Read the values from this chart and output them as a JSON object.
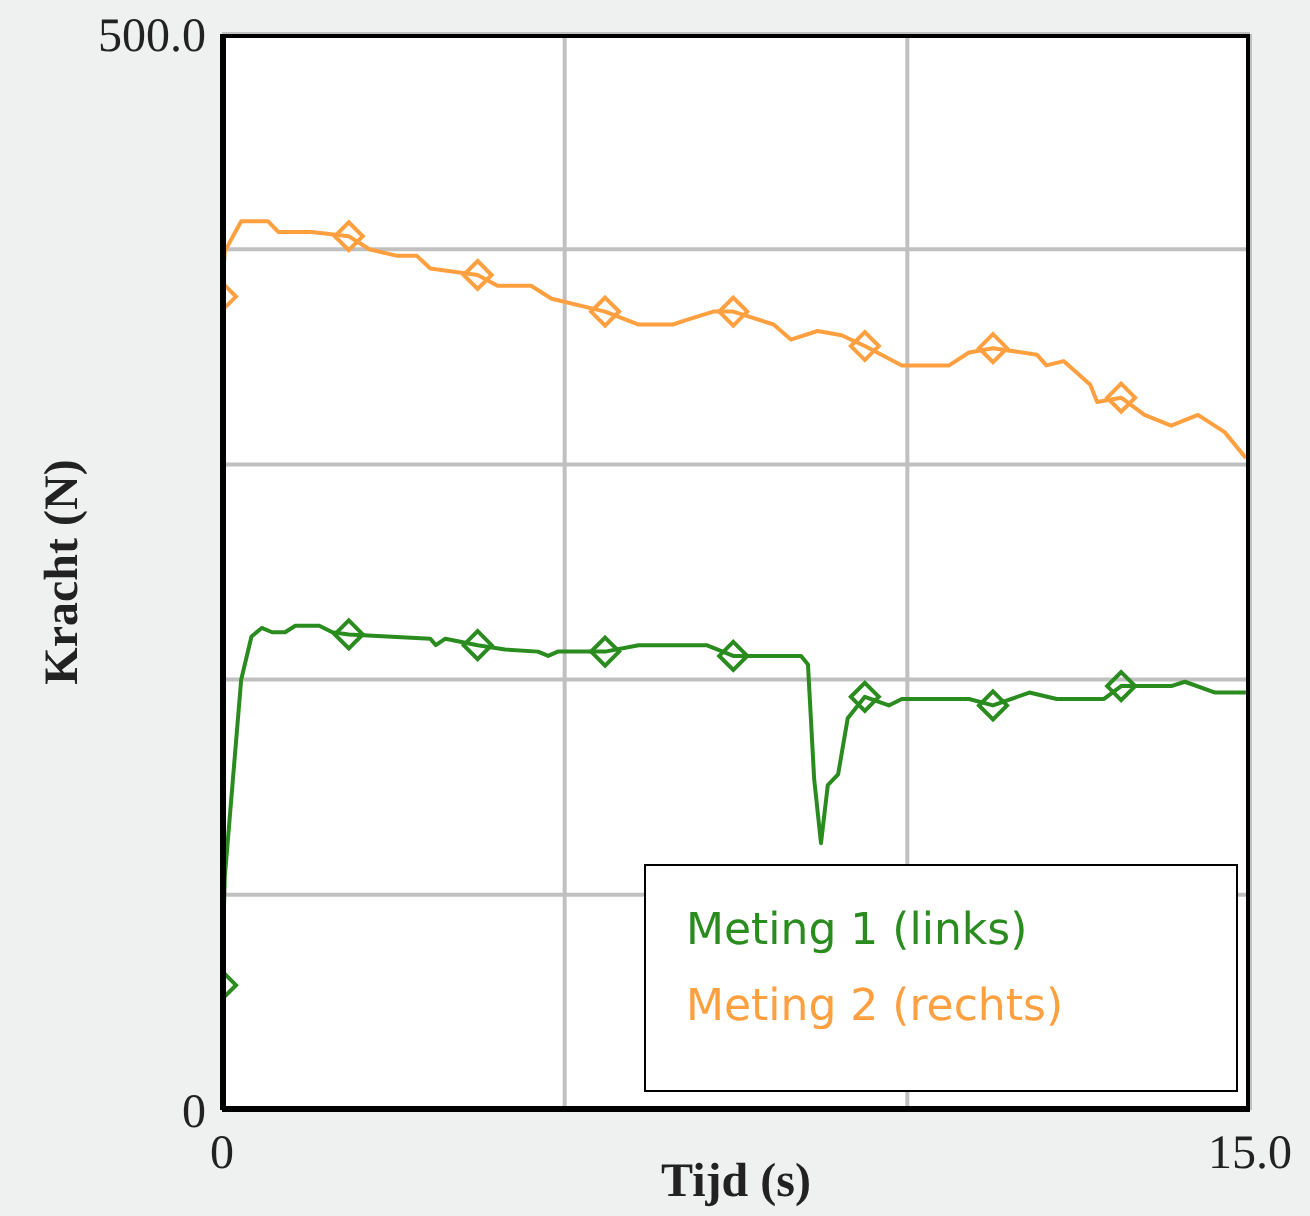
{
  "chart_data": {
    "type": "line",
    "xlabel": "Tijd (s)",
    "ylabel": "Kracht (N)",
    "xlim": [
      0,
      15
    ],
    "xticks": [
      0,
      {
        "value": 5,
        "label": null
      },
      {
        "value": 10,
        "label": null
      },
      {
        "value": 15,
        "label": "15.0"
      }
    ],
    "ylim": [
      0,
      500
    ],
    "yticks": [
      0,
      {
        "value": 100,
        "label": null
      },
      {
        "value": 200,
        "label": null
      },
      {
        "value": 300,
        "label": null
      },
      {
        "value": 400,
        "label": null
      },
      {
        "value": 500,
        "label": "500.0"
      }
    ],
    "grid": true,
    "legend": "bottom right",
    "series": [
      {
        "name": "Meting 1 (links)",
        "color": "#2a8c1e",
        "marker": "none",
        "x": [
          0,
          0.04,
          0.28,
          0.43,
          0.58,
          0.73,
          0.92,
          1.07,
          1.42,
          1.61,
          1.85,
          3.04,
          3.12,
          3.26,
          3.73,
          4.13,
          4.61,
          4.76,
          4.9,
          5.59,
          6.08,
          7.07,
          7.46,
          8.45,
          8.55,
          8.64,
          8.74,
          8.84,
          8.99,
          9.13,
          9.38,
          9.73,
          9.92,
          10.9,
          11.25,
          11.78,
          12.18,
          12.87,
          13.12,
          13.85,
          14.05,
          14.49,
          14.94
        ],
        "values": [
          58,
          108,
          200,
          220,
          224,
          222,
          222,
          225,
          225,
          222,
          221,
          219,
          216,
          219,
          216,
          214,
          213,
          211,
          213,
          213,
          216,
          216,
          211,
          211,
          207,
          154,
          124,
          151,
          156,
          182,
          192,
          188,
          191,
          191,
          188,
          194,
          191,
          191,
          197,
          197,
          199,
          194,
          194
        ]
      },
      {
        "name": "Meting 2 (rechts)",
        "color": "#ffa040",
        "marker": "none",
        "x": [
          0,
          0.04,
          0.28,
          0.67,
          0.82,
          1.31,
          1.85,
          2.15,
          2.54,
          2.84,
          3.04,
          3.73,
          4.02,
          4.51,
          4.81,
          5.59,
          6.08,
          6.58,
          6.77,
          7.17,
          7.46,
          8.05,
          8.3,
          8.69,
          9.04,
          9.38,
          9.92,
          10.61,
          10.9,
          11.25,
          11.89,
          12.03,
          12.28,
          12.67,
          12.77,
          13.12,
          13.46,
          13.85,
          14.24,
          14.63,
          14.94
        ],
        "values": [
          378,
          399,
          413,
          413,
          408,
          408,
          406,
          400,
          397,
          397,
          391,
          388,
          383,
          383,
          377,
          371,
          365,
          365,
          367,
          371,
          371,
          365,
          358,
          362,
          360,
          355,
          346,
          346,
          352,
          354,
          351,
          346,
          348,
          337,
          329,
          331,
          323,
          318,
          323,
          315,
          303
        ]
      },
      {
        "type": "scatter",
        "color": "#2a8c1e",
        "marker": "diamond",
        "x": [
          0,
          1.85,
          3.73,
          5.59,
          7.46,
          9.38,
          11.25,
          13.12
        ],
        "values": [
          58,
          221,
          216,
          213,
          211,
          192,
          188,
          197
        ]
      },
      {
        "type": "scatter",
        "color": "#ffa040",
        "marker": "diamond",
        "x": [
          0,
          1.85,
          3.73,
          5.59,
          7.46,
          9.38,
          11.25,
          13.12
        ],
        "values": [
          378,
          406,
          388,
          371,
          371,
          355,
          354,
          331
        ]
      }
    ]
  }
}
